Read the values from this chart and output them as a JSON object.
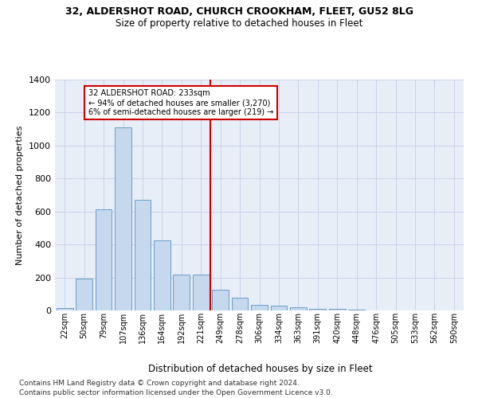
{
  "title_line1": "32, ALDERSHOT ROAD, CHURCH CROOKHAM, FLEET, GU52 8LG",
  "title_line2": "Size of property relative to detached houses in Fleet",
  "xlabel": "Distribution of detached houses by size in Fleet",
  "ylabel": "Number of detached properties",
  "bar_labels": [
    "22sqm",
    "50sqm",
    "79sqm",
    "107sqm",
    "136sqm",
    "164sqm",
    "192sqm",
    "221sqm",
    "249sqm",
    "278sqm",
    "306sqm",
    "334sqm",
    "363sqm",
    "391sqm",
    "420sqm",
    "448sqm",
    "476sqm",
    "505sqm",
    "533sqm",
    "562sqm",
    "590sqm"
  ],
  "bar_values": [
    15,
    195,
    615,
    1110,
    670,
    425,
    215,
    215,
    125,
    75,
    35,
    28,
    18,
    12,
    8,
    3,
    2,
    1,
    0,
    0,
    0
  ],
  "bar_color": "#c5d8ee",
  "bar_edgecolor": "#6a9ec5",
  "vline_color": "#cc0000",
  "vline_x": 7.5,
  "annotation_text": "32 ALDERSHOT ROAD: 233sqm\n← 94% of detached houses are smaller (3,270)\n6% of semi-detached houses are larger (219) →",
  "annotation_box_edgecolor": "#cc0000",
  "ylim": [
    0,
    1400
  ],
  "yticks": [
    0,
    200,
    400,
    600,
    800,
    1000,
    1200,
    1400
  ],
  "grid_color": "#c8d4e8",
  "bg_color": "#e8eef8",
  "footnote1": "Contains HM Land Registry data © Crown copyright and database right 2024.",
  "footnote2": "Contains public sector information licensed under the Open Government Licence v3.0."
}
